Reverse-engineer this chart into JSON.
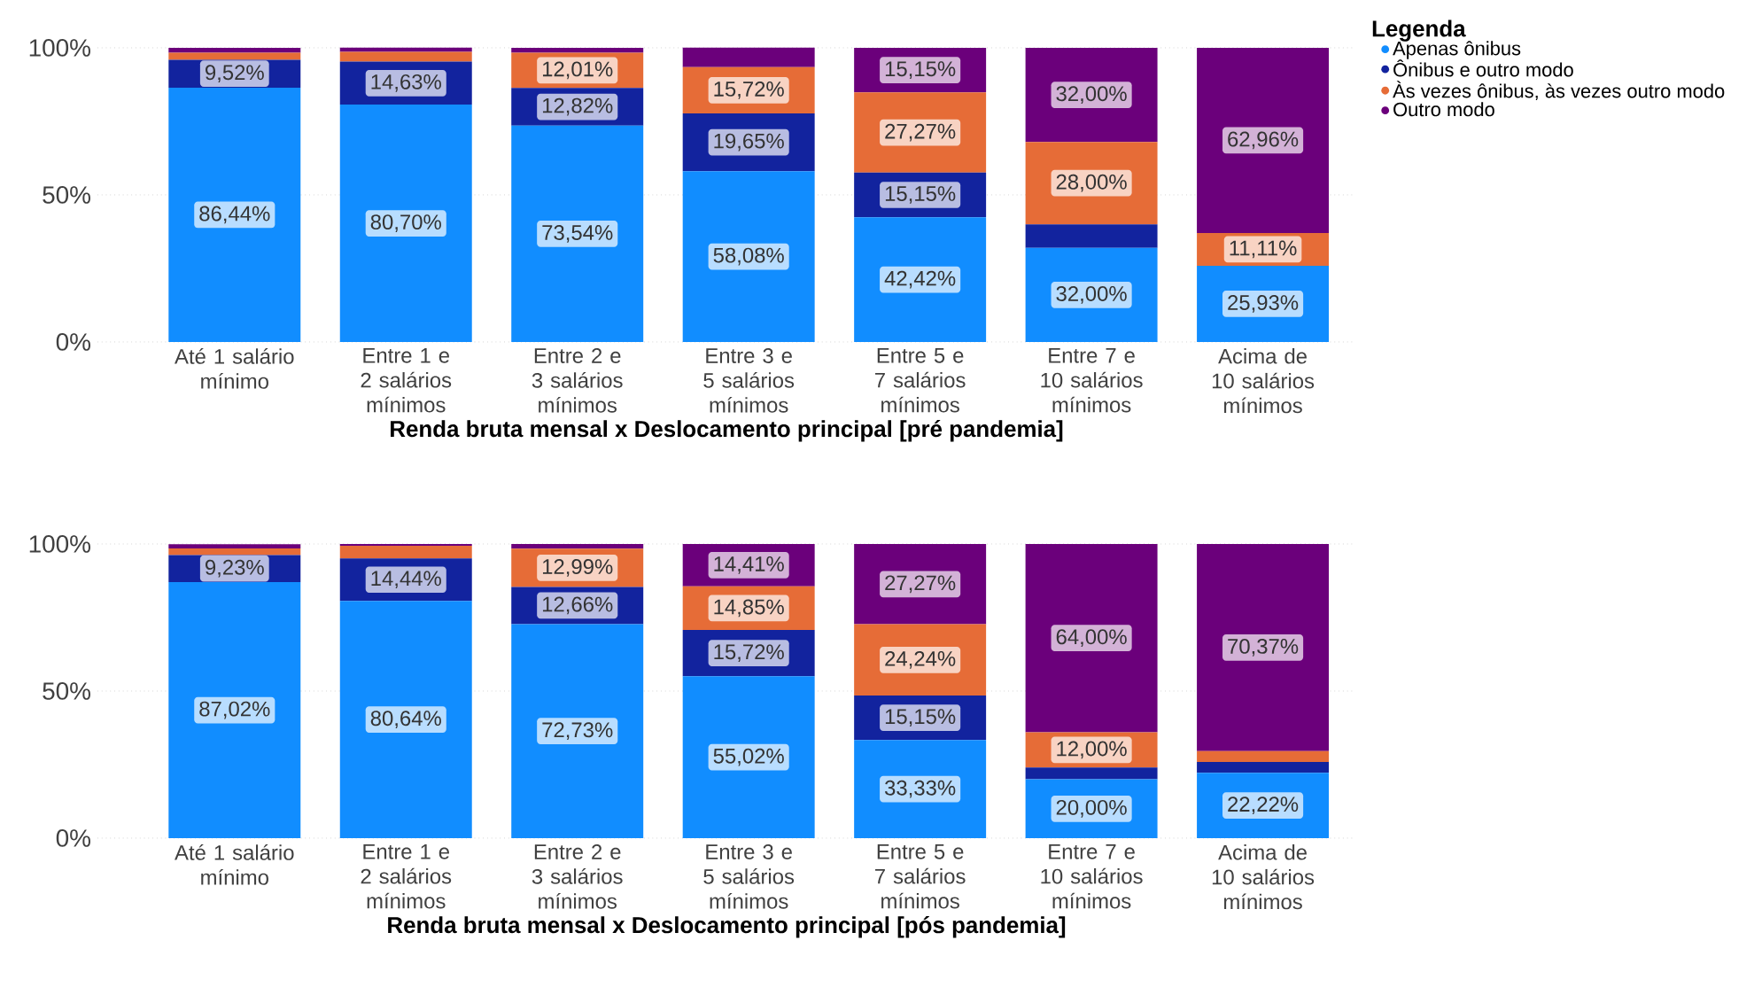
{
  "chart_data": [
    {
      "type": "bar",
      "stacked": true,
      "xlabel": "Renda bruta mensal x Deslocamento principal [pré pandemia]",
      "legend_title": "Legenda",
      "legend": "top right",
      "grid": "y",
      "categories": [
        "Até 1 salário mínimo",
        "Entre 1 e 2 salários mínimos",
        "Entre 2 e 3 salários mínimos",
        "Entre 3 e 5 salários mínimos",
        "Entre 5 e 7 salários mínimos",
        "Entre 7 e 10 salários mínimos",
        "Acima de 10 salários mínimos"
      ],
      "ylim": [
        0,
        100
      ],
      "yticks": [
        {
          "value": 0,
          "label": "0%"
        },
        {
          "value": 50,
          "label": "50%"
        },
        {
          "value": 100,
          "label": "100%"
        }
      ],
      "series": [
        {
          "name": "Apenas ônibus",
          "color": "#118dff",
          "values": [
            86.44,
            80.7,
            73.54,
            58.08,
            42.42,
            32.0,
            25.93
          ],
          "value_labels": [
            "86,44%",
            "80,70%",
            "73,54%",
            "58,08%",
            "42,42%",
            "32,00%",
            "25,93%"
          ]
        },
        {
          "name": "Ônibus e outro modo",
          "color": "#12239e",
          "values": [
            9.52,
            14.63,
            12.82,
            19.65,
            15.15,
            8.0,
            0
          ],
          "value_labels": [
            "9,52%",
            "14,63%",
            "12,82%",
            "19,65%",
            "15,15%",
            null,
            null
          ]
        },
        {
          "name": "Às vezes ônibus, às vezes outro modo",
          "color": "#e66c37",
          "values": [
            2.4,
            3.3,
            12.01,
            15.72,
            27.27,
            28.0,
            11.11
          ],
          "value_labels": [
            null,
            null,
            "12,01%",
            "15,72%",
            "27,27%",
            "28,00%",
            "11,11%"
          ]
        },
        {
          "name": "Outro modo",
          "color": "#6b007b",
          "values": [
            1.6,
            1.4,
            1.6,
            6.6,
            15.15,
            32.0,
            62.96
          ],
          "value_labels": [
            null,
            null,
            null,
            null,
            "15,15%",
            "32,00%",
            "62,96%"
          ]
        }
      ]
    },
    {
      "type": "bar",
      "stacked": true,
      "xlabel": "Renda bruta mensal x Deslocamento principal [pós pandemia]",
      "grid": "y",
      "categories": [
        "Até 1 salário mínimo",
        "Entre 1 e 2 salários mínimos",
        "Entre 2 e 3 salários mínimos",
        "Entre 3 e 5 salários mínimos",
        "Entre 5 e 7 salários mínimos",
        "Entre 7 e 10 salários mínimos",
        "Acima de 10 salários mínimos"
      ],
      "ylim": [
        0,
        100
      ],
      "yticks": [
        {
          "value": 0,
          "label": "0%"
        },
        {
          "value": 50,
          "label": "50%"
        },
        {
          "value": 100,
          "label": "100%"
        }
      ],
      "series": [
        {
          "color": "#118dff",
          "values": [
            87.02,
            80.64,
            72.73,
            55.02,
            33.33,
            20.0,
            22.22
          ],
          "value_labels": [
            "87,02%",
            "80,64%",
            "72,73%",
            "55,02%",
            "33,33%",
            "20,00%",
            "22,22%"
          ]
        },
        {
          "color": "#12239e",
          "values": [
            9.23,
            14.44,
            12.66,
            15.72,
            15.15,
            4.0,
            3.7
          ],
          "value_labels": [
            "9,23%",
            "14,44%",
            "12,66%",
            "15,72%",
            "15,15%",
            null,
            null
          ]
        },
        {
          "color": "#e66c37",
          "values": [
            2.2,
            4.3,
            12.99,
            14.85,
            24.24,
            12.0,
            3.7
          ],
          "value_labels": [
            null,
            null,
            "12,99%",
            "14,85%",
            "24,24%",
            "12,00%",
            null
          ]
        },
        {
          "color": "#6b007b",
          "values": [
            1.5,
            0.6,
            1.6,
            14.41,
            27.27,
            64.0,
            70.37
          ],
          "value_labels": [
            null,
            null,
            null,
            "14,41%",
            "27,27%",
            "64,00%",
            "70,37%"
          ]
        }
      ]
    }
  ]
}
